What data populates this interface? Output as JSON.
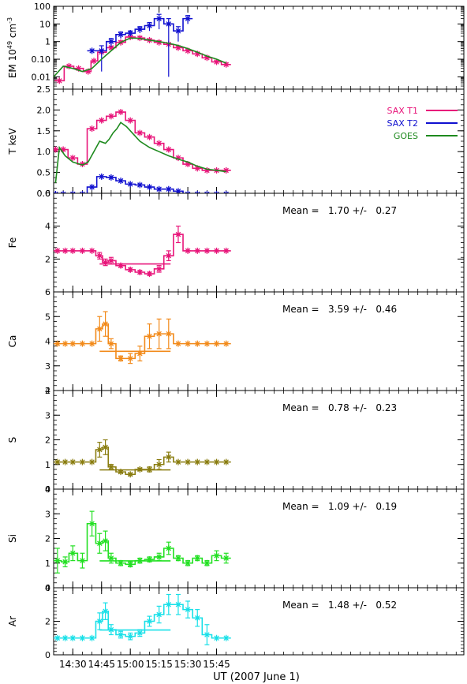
{
  "xaxis": {
    "label": "UT (2007 June 1)",
    "min": 860,
    "max": 1074,
    "ticks": [
      {
        "t": 870,
        "label": "14:30"
      },
      {
        "t": 885,
        "label": "14:45"
      },
      {
        "t": 900,
        "label": "15:00"
      },
      {
        "t": 915,
        "label": "15:15"
      },
      {
        "t": 930,
        "label": "15:30"
      },
      {
        "t": 945,
        "label": "15:45"
      }
    ]
  },
  "legend": [
    {
      "name": "SAX T1",
      "color": "#e8157a"
    },
    {
      "name": "SAX T2",
      "color": "#1010d0"
    },
    {
      "name": "GOES",
      "color": "#1e8a1e"
    }
  ],
  "chart_data": [
    {
      "id": "em",
      "type": "line",
      "ylabel": "EM 10",
      "ylabel_sup": "49",
      "ylabel_unit": " cm",
      "ylabel_unit_sup": "-3",
      "scale": "log",
      "ylim": [
        0.002,
        100
      ],
      "yticks": [
        {
          "v": 0.01,
          "label": "0.01"
        },
        {
          "v": 0.1,
          "label": "0.10"
        },
        {
          "v": 1,
          "label": "1"
        },
        {
          "v": 10,
          "label": "10"
        },
        {
          "v": 100,
          "label": "100"
        }
      ],
      "series": [
        {
          "name": "SAX T1",
          "color": "#e8157a",
          "x": [
            863,
            868,
            873,
            878,
            881,
            885,
            890,
            895,
            900,
            905,
            910,
            915,
            920,
            925,
            930,
            935,
            940,
            945,
            950
          ],
          "y": [
            0.006,
            0.04,
            0.03,
            0.02,
            0.08,
            0.25,
            0.45,
            0.9,
            1.8,
            1.6,
            1.2,
            0.9,
            0.7,
            0.45,
            0.3,
            0.2,
            0.12,
            0.07,
            0.05
          ],
          "yerr": [
            0,
            0,
            0,
            0,
            0,
            0.05,
            0.1,
            0.2,
            0.3,
            0.3,
            0.2,
            0.2,
            0.1,
            0.1,
            0.05,
            0.05,
            0.02,
            0.01,
            0.01
          ]
        },
        {
          "name": "SAX T2",
          "color": "#1010d0",
          "x": [
            880,
            885,
            890,
            895,
            900,
            905,
            910,
            915,
            920,
            925,
            930
          ],
          "y": [
            0.3,
            0.3,
            1.0,
            2.5,
            3.0,
            5.0,
            8.0,
            20,
            10,
            4,
            20
          ],
          "yerr": [
            0,
            0.28,
            0.5,
            1,
            1,
            2,
            4,
            15,
            9.99,
            3,
            10
          ]
        },
        {
          "name": "GOES",
          "color": "#1e8a1e",
          "x": [
            860,
            865,
            870,
            875,
            880,
            885,
            890,
            895,
            900,
            905,
            910,
            915,
            920,
            925,
            930,
            935,
            940,
            945,
            950
          ],
          "y": [
            0.01,
            0.04,
            0.03,
            0.02,
            0.03,
            0.1,
            0.3,
            0.9,
            1.6,
            1.5,
            1.2,
            1.0,
            0.8,
            0.6,
            0.4,
            0.25,
            0.15,
            0.1,
            0.06
          ]
        }
      ]
    },
    {
      "id": "t",
      "type": "line",
      "ylabel": "T keV",
      "ylim": [
        0,
        2.5
      ],
      "yticks": [
        {
          "v": 0,
          "label": "0.0"
        },
        {
          "v": 0.5,
          "label": "0.5"
        },
        {
          "v": 1,
          "label": "1.0"
        },
        {
          "v": 1.5,
          "label": "1.5"
        },
        {
          "v": 2,
          "label": "2.0"
        },
        {
          "v": 2.5,
          "label": "2.5"
        }
      ],
      "series": [
        {
          "name": "SAX T1",
          "color": "#e8157a",
          "x": [
            861,
            865,
            870,
            875,
            880,
            885,
            890,
            895,
            900,
            905,
            910,
            915,
            920,
            925,
            930,
            935,
            940,
            945,
            950
          ],
          "y": [
            1.05,
            1.05,
            0.85,
            0.7,
            1.55,
            1.75,
            1.85,
            1.95,
            1.75,
            1.45,
            1.35,
            1.2,
            1.05,
            0.85,
            0.7,
            0.6,
            0.55,
            0.55,
            0.55
          ]
        },
        {
          "name": "SAX T2",
          "color": "#1010d0",
          "x": [
            861,
            865,
            870,
            875,
            880,
            885,
            890,
            895,
            900,
            905,
            910,
            915,
            920,
            925,
            930,
            935,
            940,
            945,
            950
          ],
          "y": [
            -0.02,
            -0.02,
            -0.02,
            -0.02,
            0.15,
            0.4,
            0.38,
            0.3,
            0.22,
            0.2,
            0.15,
            0.1,
            0.1,
            0.05,
            -0.02,
            -0.02,
            -0.02,
            -0.02,
            -0.02
          ]
        },
        {
          "name": "GOES",
          "color": "#1e8a1e",
          "x": [
            861,
            863,
            866,
            870,
            875,
            878,
            881,
            884,
            887,
            889,
            891,
            893,
            895,
            898,
            901,
            905,
            910,
            915,
            920,
            925,
            930,
            935,
            940,
            945,
            950
          ],
          "y": [
            0.25,
            1.1,
            0.9,
            0.75,
            0.68,
            0.75,
            1.0,
            1.25,
            1.2,
            1.3,
            1.45,
            1.55,
            1.7,
            1.6,
            1.45,
            1.25,
            1.1,
            1.0,
            0.9,
            0.82,
            0.75,
            0.65,
            0.58,
            0.55,
            0.52
          ]
        }
      ]
    },
    {
      "id": "fe",
      "type": "line",
      "ylabel": "Fe",
      "ylim": [
        0,
        6
      ],
      "yticks": [
        {
          "v": 2,
          "label": "2"
        },
        {
          "v": 4,
          "label": "4"
        },
        {
          "v": 6,
          "label": "6"
        }
      ],
      "mean_text": "Mean =   1.70 +/-   0.27",
      "mean_level": 1.7,
      "mean_range": [
        884,
        921
      ],
      "color": "#e8157a",
      "x": [
        862,
        866,
        870,
        875,
        880,
        884,
        887,
        890,
        895,
        900,
        905,
        910,
        915,
        920,
        925,
        930,
        935,
        940,
        945,
        950
      ],
      "y": [
        2.5,
        2.5,
        2.5,
        2.5,
        2.5,
        2.2,
        1.8,
        1.9,
        1.6,
        1.35,
        1.2,
        1.1,
        1.4,
        2.2,
        3.5,
        2.5,
        2.5,
        2.5,
        2.5,
        2.5
      ],
      "yerr": [
        0,
        0,
        0,
        0,
        0,
        0.2,
        0.2,
        0.2,
        0.1,
        0.1,
        0.1,
        0.1,
        0.2,
        0.3,
        0.5,
        0,
        0,
        0,
        0,
        0
      ]
    },
    {
      "id": "ca",
      "type": "line",
      "ylabel": "Ca",
      "ylim": [
        2,
        6
      ],
      "yticks": [
        {
          "v": 2,
          "label": "2"
        },
        {
          "v": 3,
          "label": "3"
        },
        {
          "v": 4,
          "label": "4"
        },
        {
          "v": 5,
          "label": "5"
        },
        {
          "v": 6,
          "label": "6"
        }
      ],
      "mean_text": "Mean =   3.59 +/-   0.46",
      "mean_level": 3.59,
      "mean_range": [
        884,
        921
      ],
      "color": "#f28a1a",
      "x": [
        862,
        866,
        870,
        875,
        880,
        884,
        887,
        890,
        895,
        900,
        905,
        910,
        915,
        920,
        925,
        930,
        935,
        940,
        945,
        950
      ],
      "y": [
        3.9,
        3.9,
        3.9,
        3.9,
        3.9,
        4.5,
        4.7,
        3.9,
        3.3,
        3.3,
        3.5,
        4.2,
        4.3,
        4.3,
        3.9,
        3.9,
        3.9,
        3.9,
        3.9,
        3.9
      ],
      "yerr": [
        0,
        0,
        0,
        0,
        0,
        0.5,
        0.5,
        0.2,
        0.1,
        0.2,
        0.3,
        0.5,
        0.6,
        0.6,
        0,
        0,
        0,
        0,
        0,
        0
      ]
    },
    {
      "id": "s",
      "type": "line",
      "ylabel": "S",
      "ylim": [
        0,
        4
      ],
      "yticks": [
        {
          "v": 0,
          "label": "0"
        },
        {
          "v": 1,
          "label": "1"
        },
        {
          "v": 2,
          "label": "2"
        },
        {
          "v": 3,
          "label": "3"
        },
        {
          "v": 4,
          "label": "4"
        }
      ],
      "mean_text": "Mean =   0.78 +/-   0.23",
      "mean_level": 0.78,
      "mean_range": [
        884,
        921
      ],
      "color": "#8a7d10",
      "x": [
        862,
        866,
        870,
        875,
        880,
        884,
        887,
        890,
        895,
        900,
        905,
        910,
        915,
        920,
        925,
        930,
        935,
        940,
        945,
        950
      ],
      "y": [
        1.1,
        1.1,
        1.1,
        1.1,
        1.1,
        1.6,
        1.7,
        0.9,
        0.7,
        0.6,
        0.8,
        0.8,
        1.0,
        1.3,
        1.1,
        1.1,
        1.1,
        1.1,
        1.1,
        1.1
      ],
      "yerr": [
        0,
        0,
        0,
        0,
        0,
        0.3,
        0.3,
        0.1,
        0.05,
        0.05,
        0.05,
        0.1,
        0.2,
        0.2,
        0,
        0,
        0,
        0,
        0,
        0
      ]
    },
    {
      "id": "si",
      "type": "line",
      "ylabel": "Si",
      "ylim": [
        0,
        4
      ],
      "yticks": [
        {
          "v": 0,
          "label": "0"
        },
        {
          "v": 1,
          "label": "1"
        },
        {
          "v": 2,
          "label": "2"
        },
        {
          "v": 3,
          "label": "3"
        },
        {
          "v": 4,
          "label": "4"
        }
      ],
      "mean_text": "Mean =   1.09 +/-   0.19",
      "mean_level": 1.09,
      "mean_range": [
        884,
        921
      ],
      "color": "#22e022",
      "x": [
        862,
        866,
        870,
        875,
        880,
        884,
        887,
        890,
        895,
        900,
        905,
        910,
        915,
        920,
        925,
        930,
        935,
        940,
        945,
        950
      ],
      "y": [
        1.1,
        1.05,
        1.4,
        1.1,
        2.6,
        1.8,
        1.9,
        1.2,
        1.0,
        0.95,
        1.1,
        1.15,
        1.25,
        1.6,
        1.2,
        1.0,
        1.2,
        1.0,
        1.3,
        1.2
      ],
      "yerr": [
        0.5,
        0.2,
        0.3,
        0.3,
        0.5,
        0.4,
        0.4,
        0.2,
        0.1,
        0.1,
        0.1,
        0.1,
        0.15,
        0.25,
        0.1,
        0.1,
        0.1,
        0.1,
        0.2,
        0.2
      ]
    },
    {
      "id": "ar",
      "type": "line",
      "ylabel": "Ar",
      "ylim": [
        0,
        4
      ],
      "yticks": [
        {
          "v": 0,
          "label": "0"
        },
        {
          "v": 2,
          "label": "2"
        },
        {
          "v": 4,
          "label": "4"
        }
      ],
      "mean_text": "Mean =   1.48 +/-   0.52",
      "mean_level": 1.48,
      "mean_range": [
        884,
        921
      ],
      "color": "#18e0e8",
      "x": [
        862,
        866,
        870,
        875,
        880,
        884,
        887,
        890,
        895,
        900,
        905,
        910,
        915,
        920,
        925,
        930,
        935,
        940,
        945,
        950
      ],
      "y": [
        1.0,
        1.0,
        1.0,
        1.0,
        1.0,
        2.0,
        2.6,
        1.5,
        1.2,
        1.1,
        1.3,
        2.0,
        2.4,
        3.0,
        3.0,
        2.7,
        2.2,
        1.2,
        1.0,
        1.0
      ],
      "yerr": [
        0,
        0,
        0,
        0,
        0,
        0.5,
        0.5,
        0.3,
        0.2,
        0.2,
        0.2,
        0.3,
        0.5,
        0.6,
        0.6,
        0.5,
        0.5,
        0.6,
        0,
        0
      ]
    }
  ]
}
